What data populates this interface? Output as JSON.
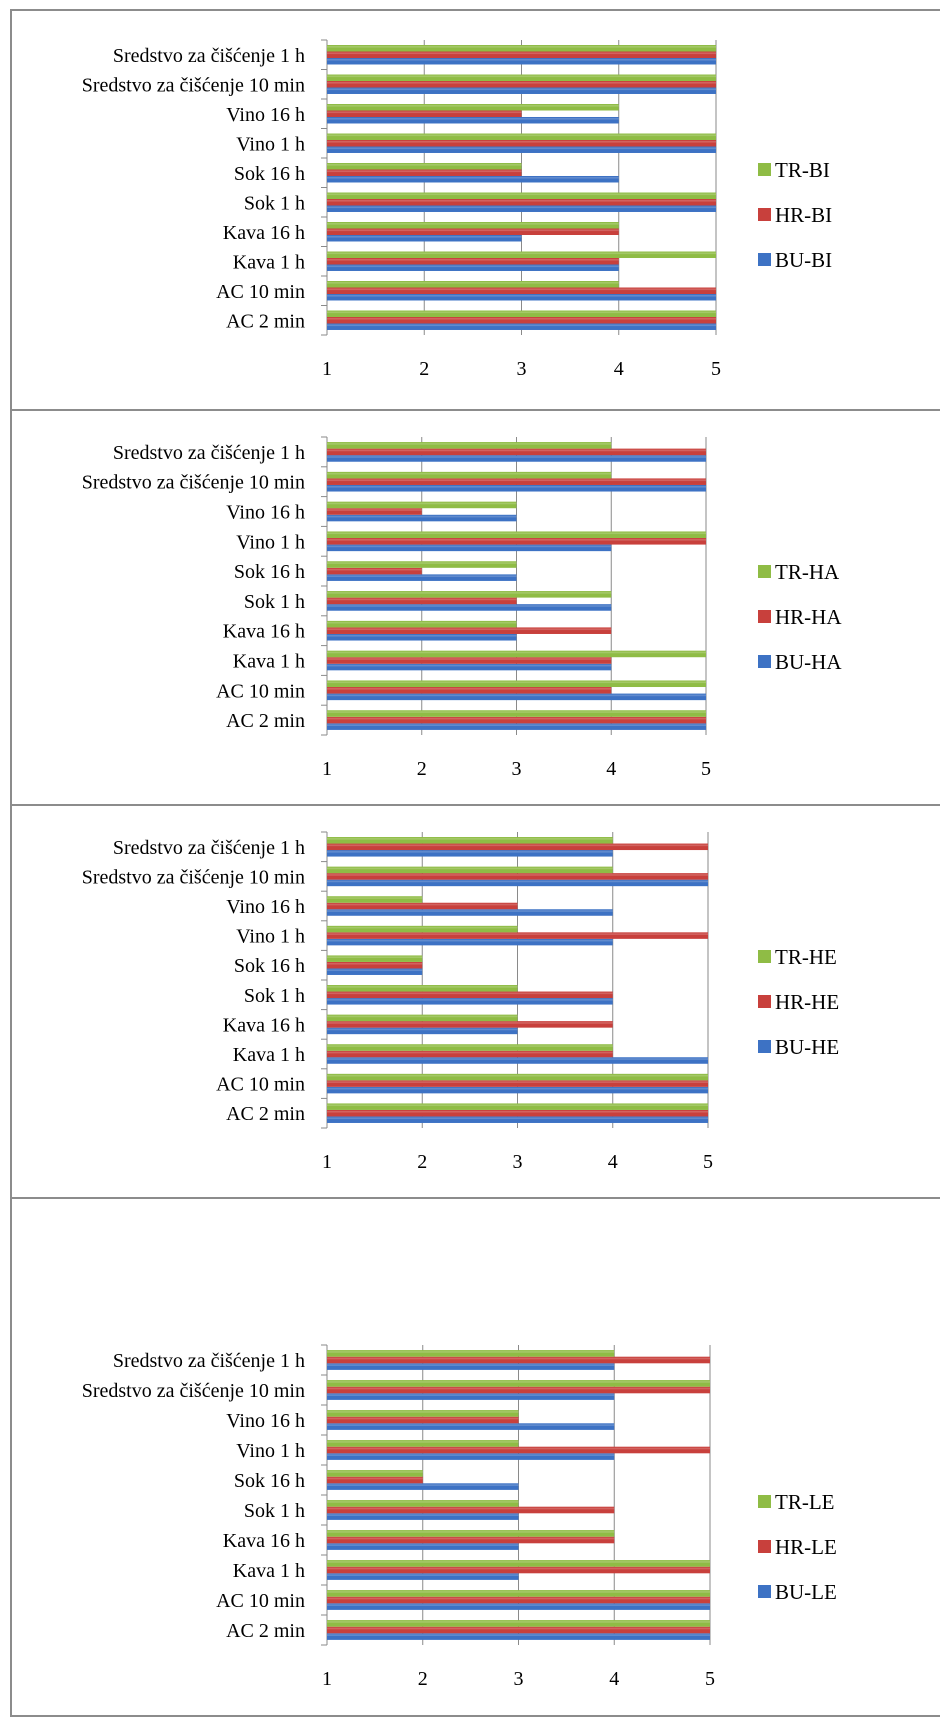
{
  "colors": {
    "BU": "#3d72c4",
    "HR": "#c8403c",
    "TR": "#8fbc45"
  },
  "chart_data": [
    {
      "type": "bar",
      "orientation": "horizontal",
      "categories": [
        "AC 2 min",
        "AC 10 min",
        "Kava 1 h",
        "Kava 16 h",
        "Sok 1 h",
        "Sok 16 h",
        "Vino 1 h",
        "Vino 16 h",
        "Sredstvo za čišćenje 10 min",
        "Sredstvo za čišćenje 1 h"
      ],
      "series": [
        {
          "name": "BU-BI",
          "values": [
            5,
            5,
            4,
            3,
            5,
            4,
            5,
            4,
            5,
            5
          ]
        },
        {
          "name": "HR-BI",
          "values": [
            5,
            5,
            4,
            4,
            5,
            3,
            5,
            3,
            5,
            5
          ]
        },
        {
          "name": "TR-BI",
          "values": [
            5,
            4,
            5,
            4,
            5,
            3,
            5,
            4,
            5,
            5
          ]
        }
      ],
      "xlim": [
        1,
        5
      ],
      "xticks": [
        "1",
        "2",
        "3",
        "4",
        "5"
      ],
      "grid": true,
      "legend_position": "right"
    },
    {
      "type": "bar",
      "orientation": "horizontal",
      "categories": [
        "AC 2 min",
        "AC 10 min",
        "Kava 1 h",
        "Kava 16 h",
        "Sok 1 h",
        "Sok 16 h",
        "Vino 1 h",
        "Vino 16 h",
        "Sredstvo za čišćenje 10 min",
        "Sredstvo za čišćenje 1 h"
      ],
      "series": [
        {
          "name": "BU-HA",
          "values": [
            5,
            5,
            4,
            3,
            4,
            3,
            4,
            3,
            5,
            5
          ]
        },
        {
          "name": "HR-HA",
          "values": [
            5,
            4,
            4,
            4,
            3,
            2,
            5,
            2,
            5,
            5
          ]
        },
        {
          "name": "TR-HA",
          "values": [
            5,
            5,
            5,
            3,
            4,
            3,
            5,
            3,
            4,
            4
          ]
        }
      ],
      "xlim": [
        1,
        5
      ],
      "xticks": [
        "1",
        "2",
        "3",
        "4",
        "5"
      ],
      "grid": true,
      "legend_position": "right"
    },
    {
      "type": "bar",
      "orientation": "horizontal",
      "categories": [
        "AC 2 min",
        "AC 10 min",
        "Kava 1 h",
        "Kava 16 h",
        "Sok 1 h",
        "Sok 16 h",
        "Vino 1 h",
        "Vino 16 h",
        "Sredstvo za čišćenje 10 min",
        "Sredstvo za čišćenje 1 h"
      ],
      "series": [
        {
          "name": "BU-HE",
          "values": [
            5,
            5,
            5,
            3,
            4,
            2,
            4,
            4,
            5,
            4
          ]
        },
        {
          "name": "HR-HE",
          "values": [
            5,
            5,
            4,
            4,
            4,
            2,
            5,
            3,
            5,
            5
          ]
        },
        {
          "name": "TR-HE",
          "values": [
            5,
            5,
            4,
            3,
            3,
            2,
            3,
            2,
            4,
            4
          ]
        }
      ],
      "xlim": [
        1,
        5
      ],
      "xticks": [
        "1",
        "2",
        "3",
        "4",
        "5"
      ],
      "grid": true,
      "legend_position": "right"
    },
    {
      "type": "bar",
      "orientation": "horizontal",
      "categories": [
        "AC 2 min",
        "AC 10 min",
        "Kava 1 h",
        "Kava 16 h",
        "Sok 1 h",
        "Sok 16 h",
        "Vino 1 h",
        "Vino 16 h",
        "Sredstvo za čišćenje 10 min",
        "Sredstvo za čišćenje 1 h"
      ],
      "series": [
        {
          "name": "BU-LE",
          "values": [
            5,
            5,
            3,
            3,
            3,
            3,
            4,
            4,
            4,
            4
          ]
        },
        {
          "name": "HR-LE",
          "values": [
            5,
            5,
            5,
            4,
            4,
            2,
            5,
            3,
            5,
            5
          ]
        },
        {
          "name": "TR-LE",
          "values": [
            5,
            5,
            5,
            4,
            3,
            2,
            3,
            3,
            5,
            4
          ]
        }
      ],
      "xlim": [
        1,
        5
      ],
      "xticks": [
        "1",
        "2",
        "3",
        "4",
        "5"
      ],
      "grid": true,
      "legend_position": "right"
    }
  ]
}
